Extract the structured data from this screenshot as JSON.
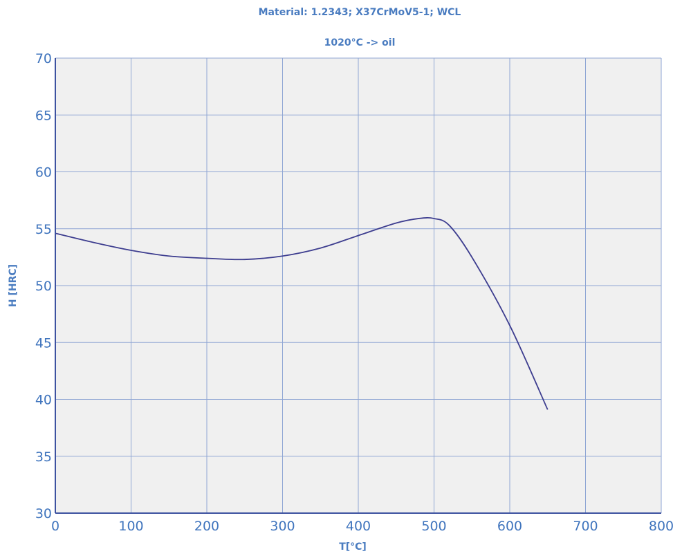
{
  "chart_data": {
    "type": "line",
    "title": "Material: 1.2343; X37CrMoV5-1; WCL",
    "subtitle": "1020°C  -> oil",
    "xlabel": "T[°C]",
    "ylabel": "H [HRC]",
    "xlim": [
      0,
      800
    ],
    "ylim": [
      30,
      70
    ],
    "x_ticks": [
      0,
      100,
      200,
      300,
      400,
      500,
      600,
      700,
      800
    ],
    "y_ticks": [
      30,
      35,
      40,
      45,
      50,
      55,
      60,
      65,
      70
    ],
    "x_tick_labels": [
      "0",
      "100",
      "200",
      "300",
      "400",
      "500",
      "600",
      "700",
      "800"
    ],
    "y_tick_labels": [
      "30",
      "35",
      "40",
      "45",
      "50",
      "55",
      "60",
      "65",
      "70"
    ],
    "grid": true,
    "series": [
      {
        "color": "#3d3d8f",
        "x": [
          0,
          50,
          100,
          150,
          200,
          250,
          300,
          350,
          400,
          450,
          480,
          500,
          520,
          550,
          600,
          650
        ],
        "y": [
          54.6,
          53.8,
          53.1,
          52.6,
          52.4,
          52.3,
          52.6,
          53.3,
          54.4,
          55.5,
          55.9,
          55.9,
          55.3,
          52.5,
          46.5,
          39.1
        ]
      }
    ],
    "colors": {
      "plot_background": "#f0f0f0",
      "grid": "#8fa6d4",
      "axis": "#3d52a0",
      "text": "#4a7cc0"
    }
  }
}
